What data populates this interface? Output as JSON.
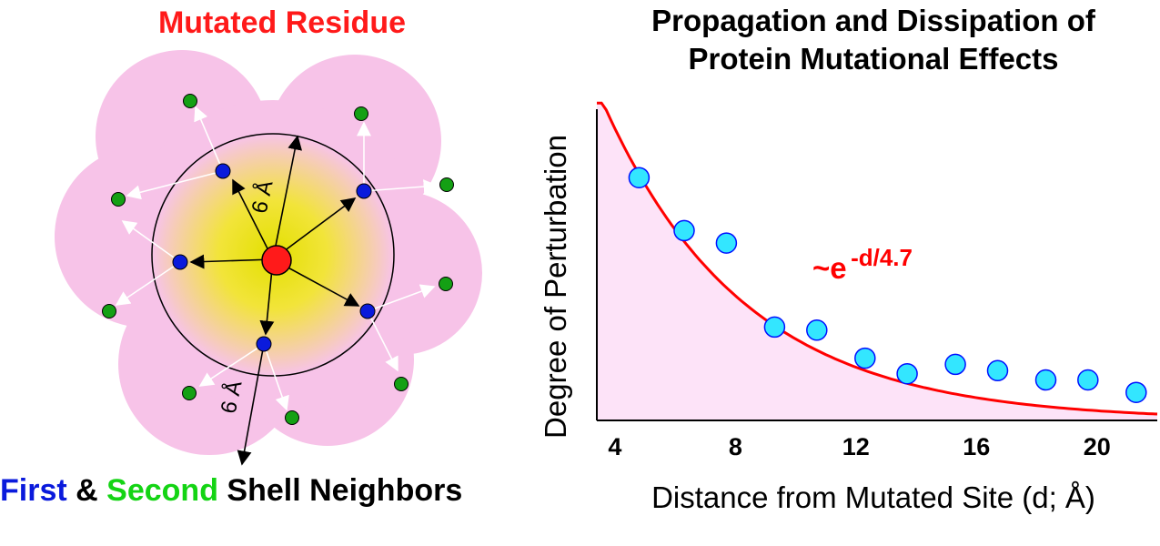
{
  "diagram": {
    "title": "Mutated Residue",
    "radius_label": "6 Å",
    "legend": {
      "first": "First",
      "and": "&",
      "second": "Second",
      "rest": "Shell Neighbors"
    },
    "colors": {
      "mutated": "#ff1a1a",
      "first_shell": "#0a1adc",
      "second_shell": "#14a014",
      "outer_region": "#f7c3e8",
      "inner_core": "#e8e020"
    }
  },
  "chart": {
    "title_line1": "Propagation and Dissipation of",
    "title_line2": "Protein Mutational Effects",
    "annotation_base": "~e",
    "annotation_exp": "-d/4.7",
    "colors": {
      "fit_line": "#ff0000",
      "points_fill": "#33e6ff",
      "points_stroke": "#0010ff",
      "area_fill": "#fde3f8"
    }
  },
  "chart_data": {
    "type": "scatter",
    "xlabel": "Distance from Mutated Site (d; Å)",
    "ylabel": "Degree of Perturbation",
    "xlim": [
      3.4,
      22
    ],
    "xticks": [
      4,
      8,
      12,
      16,
      20
    ],
    "ylim": [
      0,
      1
    ],
    "grid": false,
    "series": [
      {
        "x": [
          4.8,
          6.3,
          7.7,
          9.3,
          10.7,
          12.3,
          13.7,
          15.3,
          16.7,
          18.3,
          19.7,
          21.3
        ],
        "y": [
          0.78,
          0.61,
          0.57,
          0.3,
          0.29,
          0.2,
          0.15,
          0.18,
          0.16,
          0.13,
          0.13,
          0.09
        ]
      }
    ],
    "fit": {
      "form": "exponential",
      "label": "~e-d/4.7",
      "decay_length": 4.7
    }
  }
}
